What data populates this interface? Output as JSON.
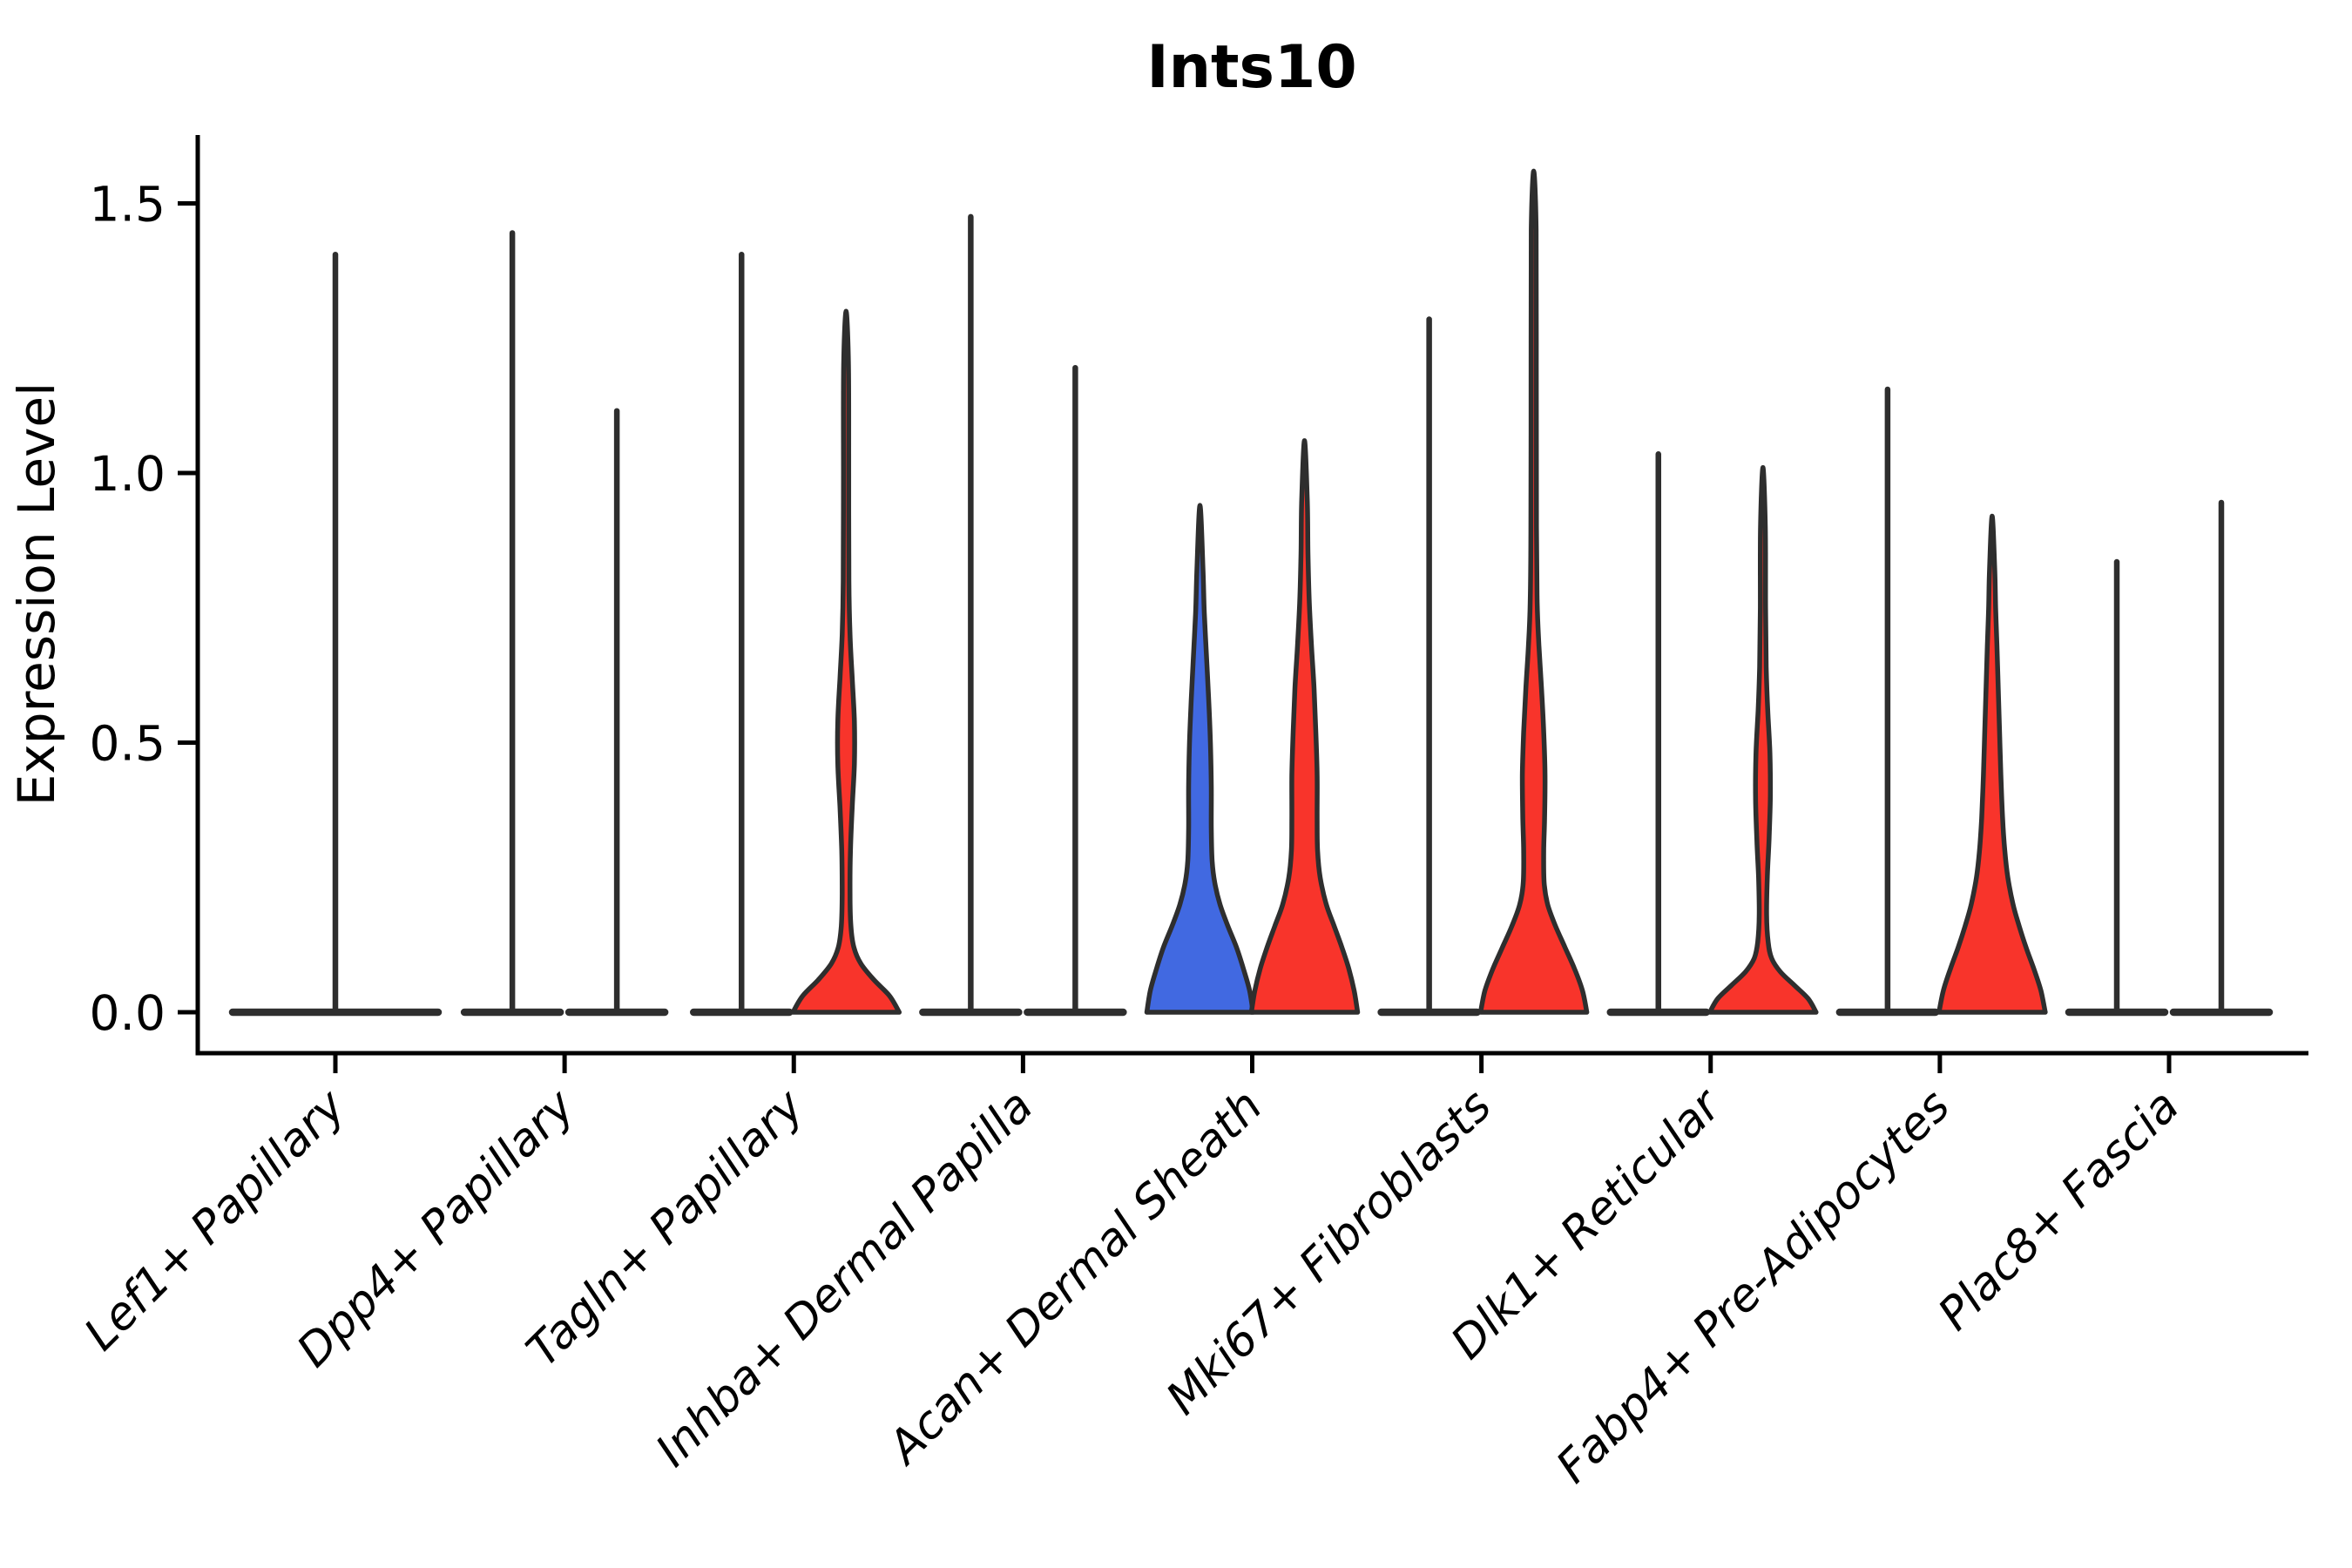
{
  "chart_data": {
    "type": "violin",
    "title": "Ints10",
    "xlabel": "",
    "ylabel": "Expression Level",
    "ylim": [
      -0.08,
      1.63
    ],
    "yticks": [
      "0.0",
      "0.5",
      "1.0",
      "1.5"
    ],
    "ytick_values": [
      0.0,
      0.5,
      1.0,
      1.5
    ],
    "grid": false,
    "legend": "none",
    "split_violin": true,
    "colors": {
      "left_group_fill": "#4169e1",
      "right_group_fill": "#f8342b",
      "violin_outline": "#2e2e2e",
      "axis": "#000000"
    },
    "note": "Most cells have expression 0, so violins collapse to a flat base with a thin spike to the max value; shaped violins carry a density profile of [expression_value, half_width_px] pairs.",
    "categories": [
      {
        "label": "Lef1+ Papillary",
        "violins": [
          {
            "side": "center",
            "style": "spike",
            "fill": "none",
            "max": 1.41,
            "half_width": 123
          }
        ]
      },
      {
        "label": "Dpp4+ Papillary",
        "violins": [
          {
            "side": "left",
            "style": "spike",
            "fill": "none",
            "max": 1.45
          },
          {
            "side": "right",
            "style": "spike",
            "fill": "none",
            "max": 1.12
          }
        ]
      },
      {
        "label": "Tagln+ Papillary",
        "violins": [
          {
            "side": "left",
            "style": "spike",
            "fill": "none",
            "max": 1.41
          },
          {
            "side": "right",
            "style": "shaped",
            "fill": "red",
            "max": 1.3,
            "profile": [
              [
                0,
                61
              ],
              [
                0.03,
                50
              ],
              [
                0.06,
                32
              ],
              [
                0.09,
                17
              ],
              [
                0.12,
                9
              ],
              [
                0.16,
                5.5
              ],
              [
                0.22,
                4.5
              ],
              [
                0.3,
                5
              ],
              [
                0.38,
                7
              ],
              [
                0.46,
                9.5
              ],
              [
                0.54,
                9.5
              ],
              [
                0.62,
                7
              ],
              [
                0.7,
                4.5
              ],
              [
                0.8,
                3.2
              ],
              [
                1.0,
                3
              ],
              [
                1.2,
                2.8
              ],
              [
                1.3,
                0
              ]
            ]
          }
        ]
      },
      {
        "label": "Inhba+ Dermal Papilla",
        "violins": [
          {
            "side": "left",
            "style": "spike",
            "fill": "none",
            "max": 1.48
          },
          {
            "side": "right",
            "style": "spike",
            "fill": "none",
            "max": 1.2
          }
        ]
      },
      {
        "label": "Acan+ Dermal Sheath",
        "violins": [
          {
            "side": "left",
            "style": "shaped",
            "fill": "blue",
            "max": 0.94,
            "profile": [
              [
                0,
                61
              ],
              [
                0.04,
                57
              ],
              [
                0.08,
                50
              ],
              [
                0.12,
                42
              ],
              [
                0.16,
                32
              ],
              [
                0.2,
                23
              ],
              [
                0.24,
                17
              ],
              [
                0.28,
                14
              ],
              [
                0.34,
                13
              ],
              [
                0.42,
                13
              ],
              [
                0.5,
                12
              ],
              [
                0.58,
                10
              ],
              [
                0.66,
                7.5
              ],
              [
                0.74,
                5
              ],
              [
                0.82,
                3.5
              ],
              [
                0.94,
                0
              ]
            ]
          },
          {
            "side": "right",
            "style": "shaped",
            "fill": "red",
            "max": 1.06,
            "profile": [
              [
                0,
                61
              ],
              [
                0.04,
                57
              ],
              [
                0.08,
                51
              ],
              [
                0.12,
                43
              ],
              [
                0.16,
                34
              ],
              [
                0.2,
                25
              ],
              [
                0.25,
                18
              ],
              [
                0.3,
                15
              ],
              [
                0.36,
                14.5
              ],
              [
                0.44,
                14.5
              ],
              [
                0.52,
                13
              ],
              [
                0.6,
                11
              ],
              [
                0.68,
                8
              ],
              [
                0.76,
                5.5
              ],
              [
                0.85,
                4
              ],
              [
                0.95,
                3.2
              ],
              [
                1.06,
                0
              ]
            ]
          }
        ]
      },
      {
        "label": "Mki67+ Fibroblasts",
        "violins": [
          {
            "side": "left",
            "style": "spike",
            "fill": "none",
            "max": 1.29
          },
          {
            "side": "right",
            "style": "shaped",
            "fill": "red",
            "max": 1.56,
            "profile": [
              [
                0,
                61
              ],
              [
                0.04,
                56
              ],
              [
                0.08,
                47
              ],
              [
                0.12,
                36
              ],
              [
                0.16,
                25
              ],
              [
                0.2,
                16
              ],
              [
                0.24,
                12
              ],
              [
                0.3,
                11.5
              ],
              [
                0.36,
                12.5
              ],
              [
                0.44,
                13
              ],
              [
                0.52,
                11.5
              ],
              [
                0.6,
                9
              ],
              [
                0.68,
                6
              ],
              [
                0.76,
                4
              ],
              [
                0.9,
                3.2
              ],
              [
                1.2,
                3
              ],
              [
                1.45,
                2.8
              ],
              [
                1.56,
                0
              ]
            ]
          }
        ]
      },
      {
        "label": "Dlk1+ Reticular",
        "violins": [
          {
            "side": "left",
            "style": "spike",
            "fill": "none",
            "max": 1.04
          },
          {
            "side": "right",
            "style": "shaped",
            "fill": "red",
            "max": 1.01,
            "profile": [
              [
                0,
                61
              ],
              [
                0.025,
                52
              ],
              [
                0.05,
                36
              ],
              [
                0.075,
                20
              ],
              [
                0.1,
                10
              ],
              [
                0.13,
                6
              ],
              [
                0.18,
                4.2
              ],
              [
                0.25,
                5
              ],
              [
                0.32,
                7
              ],
              [
                0.4,
                8.5
              ],
              [
                0.48,
                8
              ],
              [
                0.56,
                5.5
              ],
              [
                0.64,
                3.8
              ],
              [
                0.75,
                3
              ],
              [
                0.9,
                2.8
              ],
              [
                1.01,
                0
              ]
            ]
          }
        ]
      },
      {
        "label": "Fabp4+ Pre-Adipocytes",
        "violins": [
          {
            "side": "left",
            "style": "spike",
            "fill": "none",
            "max": 1.16
          },
          {
            "side": "right",
            "style": "shaped",
            "fill": "red",
            "max": 0.92,
            "profile": [
              [
                0,
                61
              ],
              [
                0.04,
                56
              ],
              [
                0.08,
                48
              ],
              [
                0.12,
                39
              ],
              [
                0.16,
                31
              ],
              [
                0.2,
                24
              ],
              [
                0.25,
                18
              ],
              [
                0.3,
                14.5
              ],
              [
                0.36,
                12
              ],
              [
                0.44,
                10
              ],
              [
                0.52,
                8.5
              ],
              [
                0.6,
                7
              ],
              [
                0.68,
                5.5
              ],
              [
                0.75,
                4
              ],
              [
                0.82,
                3
              ],
              [
                0.92,
                0
              ]
            ]
          }
        ]
      },
      {
        "label": "Plac8+ Fascia",
        "violins": [
          {
            "side": "left",
            "style": "spike",
            "fill": "none",
            "max": 0.84
          },
          {
            "side": "right",
            "style": "spike",
            "fill": "none",
            "max": 0.95
          }
        ]
      }
    ]
  }
}
